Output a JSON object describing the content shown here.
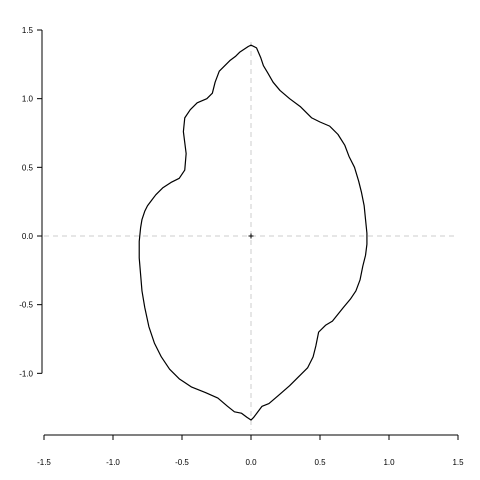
{
  "chart_data": {
    "type": "line",
    "title": "",
    "xlabel": "",
    "ylabel": "",
    "xlim": [
      -1.5,
      1.5
    ],
    "ylim": [
      -1.5,
      1.5
    ],
    "x_ticks": [
      -1.5,
      -1.0,
      -0.5,
      0.0,
      0.5,
      1.0,
      1.5
    ],
    "x_tick_labels": [
      "-1.5",
      "-1.0",
      "-0.5",
      "0.0",
      "0.5",
      "1.0",
      "1.5"
    ],
    "y_ticks": [
      -1.0,
      -0.5,
      0.0,
      0.5,
      1.0,
      1.5
    ],
    "y_tick_labels": [
      "-1.0",
      "-0.5",
      "0.0",
      "0.5",
      "1.0",
      "1.5"
    ],
    "grid": false,
    "reference_lines": {
      "x": 0,
      "y": 0,
      "style": "dashed",
      "color": "#cccccc"
    },
    "center_marker": {
      "x": 0,
      "y": 0,
      "shape": "plus"
    },
    "series": [
      {
        "color": "#000000",
        "closed": true,
        "x": [
          0.0,
          0.04,
          0.07,
          0.09,
          0.12,
          0.16,
          0.21,
          0.28,
          0.36,
          0.44,
          0.5,
          0.57,
          0.63,
          0.68,
          0.71,
          0.75,
          0.78,
          0.8,
          0.82,
          0.83,
          0.84,
          0.84,
          0.83,
          0.81,
          0.79,
          0.76,
          0.72,
          0.67,
          0.63,
          0.59,
          0.54,
          0.49,
          0.47,
          0.45,
          0.41,
          0.35,
          0.28,
          0.2,
          0.13,
          0.08,
          0.05,
          0.02,
          0.0,
          -0.03,
          -0.07,
          -0.12,
          -0.17,
          -0.24,
          -0.33,
          -0.43,
          -0.52,
          -0.59,
          -0.65,
          -0.7,
          -0.74,
          -0.77,
          -0.79,
          -0.8,
          -0.81,
          -0.81,
          -0.8,
          -0.79,
          -0.77,
          -0.75,
          -0.72,
          -0.69,
          -0.64,
          -0.58,
          -0.52,
          -0.48,
          -0.47,
          -0.48,
          -0.49,
          -0.48,
          -0.44,
          -0.39,
          -0.32,
          -0.28,
          -0.26,
          -0.23,
          -0.19,
          -0.15,
          -0.11,
          -0.08,
          -0.05,
          -0.02,
          0.0
        ],
        "y": [
          1.39,
          1.37,
          1.3,
          1.24,
          1.19,
          1.12,
          1.06,
          1.0,
          0.94,
          0.86,
          0.83,
          0.8,
          0.74,
          0.66,
          0.58,
          0.5,
          0.4,
          0.32,
          0.22,
          0.12,
          0.02,
          -0.06,
          -0.14,
          -0.22,
          -0.32,
          -0.4,
          -0.46,
          -0.52,
          -0.57,
          -0.62,
          -0.65,
          -0.7,
          -0.8,
          -0.88,
          -0.96,
          -1.02,
          -1.09,
          -1.16,
          -1.22,
          -1.24,
          -1.28,
          -1.32,
          -1.34,
          -1.32,
          -1.29,
          -1.28,
          -1.24,
          -1.18,
          -1.14,
          -1.1,
          -1.04,
          -0.97,
          -0.88,
          -0.78,
          -0.66,
          -0.52,
          -0.4,
          -0.28,
          -0.16,
          -0.04,
          0.06,
          0.12,
          0.18,
          0.22,
          0.26,
          0.3,
          0.35,
          0.39,
          0.42,
          0.48,
          0.6,
          0.68,
          0.76,
          0.86,
          0.92,
          0.97,
          1.0,
          1.04,
          1.12,
          1.2,
          1.24,
          1.28,
          1.31,
          1.34,
          1.36,
          1.38,
          1.39
        ]
      }
    ]
  }
}
